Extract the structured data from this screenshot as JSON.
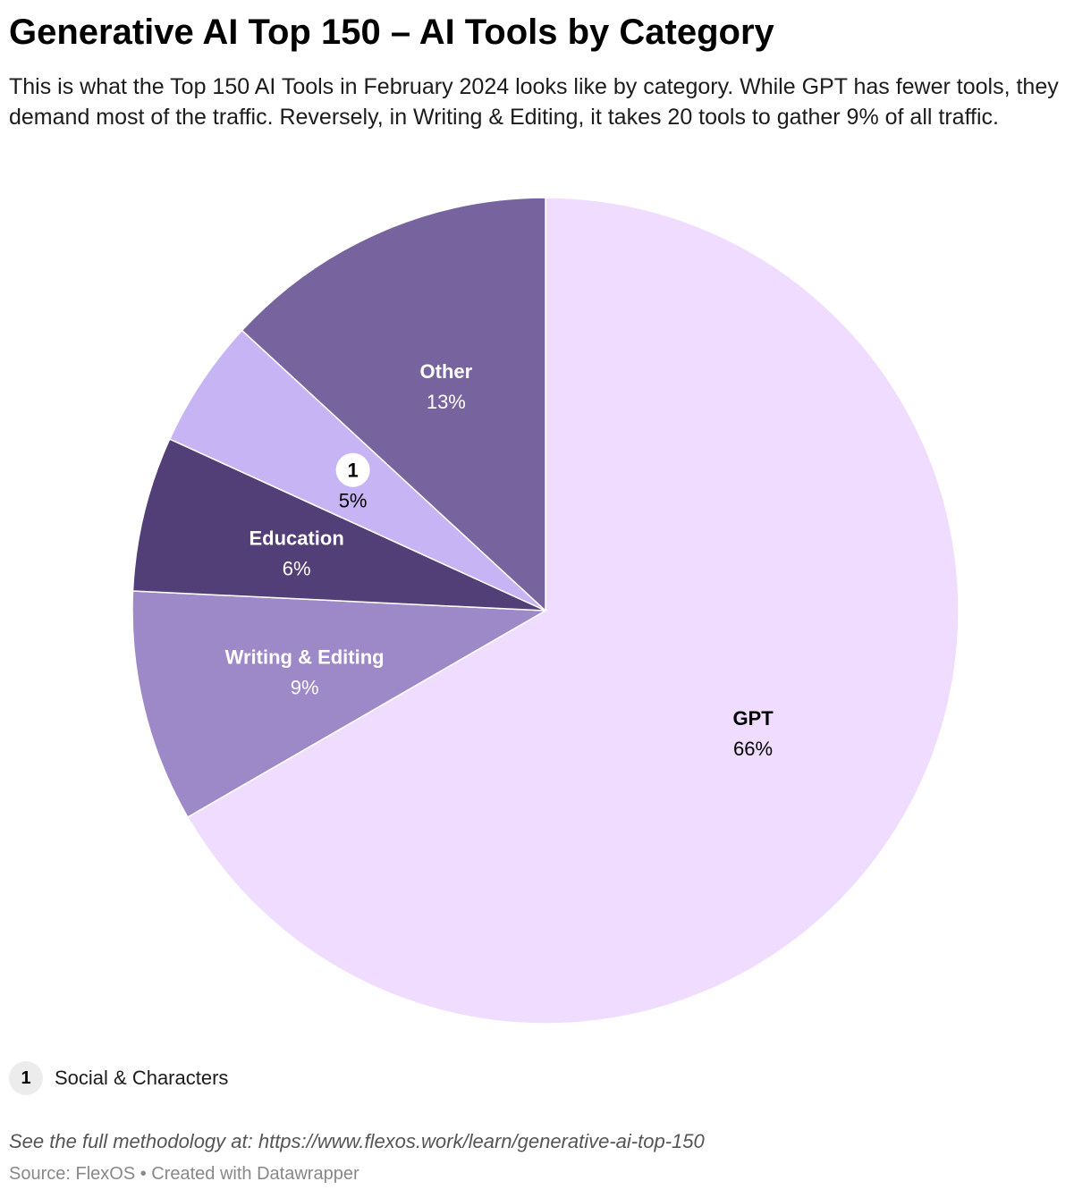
{
  "header": {
    "title": "Generative AI Top 150 – AI Tools by Category",
    "subtitle": "This is what the Top 150 AI Tools in February 2024 looks like by category. While GPT has fewer tools, they demand most of the traffic. Reversely, in Writing & Editing, it takes 20 tools to gather 9% of all traffic."
  },
  "chart_data": {
    "type": "pie",
    "start": "12 o'clock, clockwise",
    "slices": [
      {
        "label": "GPT",
        "value": 66,
        "value_label": "66%",
        "color": "#f0dcfe",
        "text_color": "#000000"
      },
      {
        "label": "Writing & Editing",
        "value": 9,
        "value_label": "9%",
        "color": "#9d88c8",
        "text_color": "#ffffff"
      },
      {
        "label": "Education",
        "value": 6,
        "value_label": "6%",
        "color": "#523f77",
        "text_color": "#ffffff"
      },
      {
        "label": "1",
        "value": 5,
        "value_label": "5%",
        "color": "#c6b4f4",
        "text_color": "#000000",
        "marker": "1"
      },
      {
        "label": "Other",
        "value": 13,
        "value_label": "13%",
        "color": "#77649e",
        "text_color": "#ffffff"
      }
    ]
  },
  "legend": {
    "badge": "1",
    "label": "Social & Characters"
  },
  "notes": "See the full methodology at: https://www.flexos.work/learn/generative-ai-top-150",
  "footer": {
    "text": "Source: FlexOS • Created with Datawrapper"
  }
}
